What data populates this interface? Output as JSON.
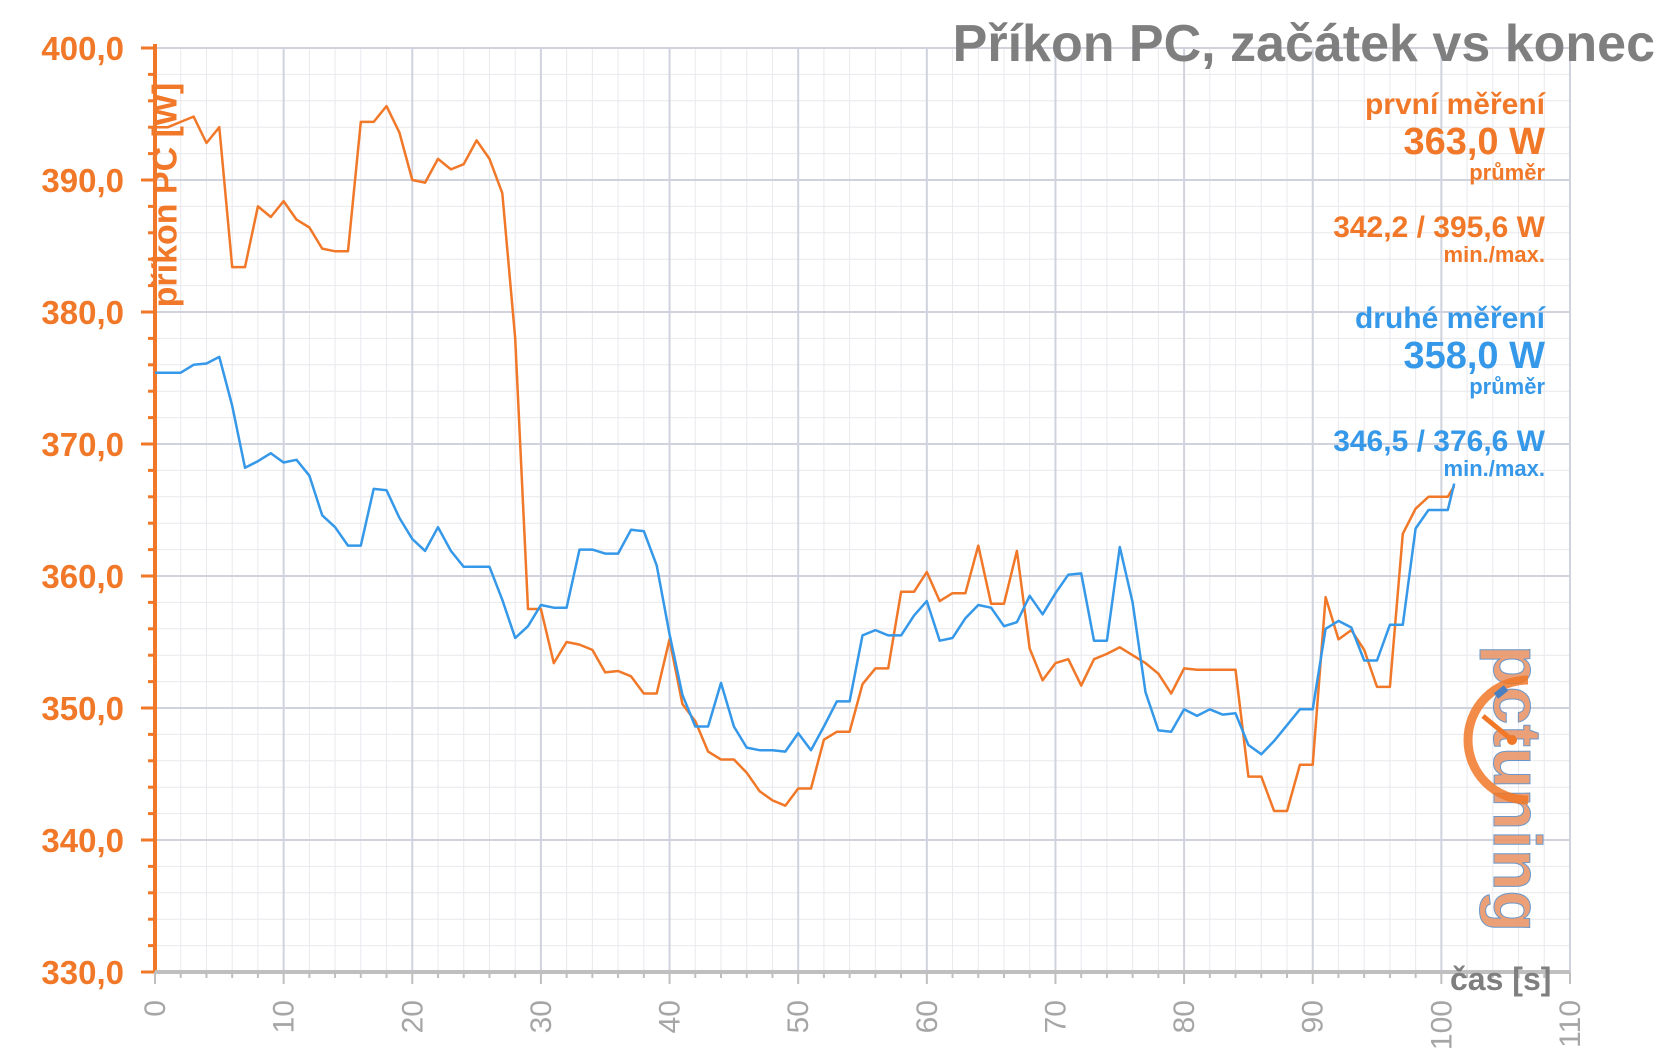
{
  "chart_data": {
    "type": "line",
    "title": "Příkon PC, začátek vs konec",
    "ylabel": "příkon PC [W]",
    "xlabel": "čas [s]",
    "xlim": [
      0,
      110
    ],
    "ylim": [
      330,
      400
    ],
    "x_ticks": [
      "0",
      "10",
      "20",
      "30",
      "40",
      "50",
      "60",
      "70",
      "80",
      "90",
      "100",
      "110"
    ],
    "y_ticks": [
      "330,0",
      "340,0",
      "350,0",
      "360,0",
      "370,0",
      "380,0",
      "390,0",
      "400,0"
    ],
    "grid": true,
    "series": [
      {
        "name": "první měření",
        "color": "#f07828",
        "average": "363,0 W",
        "average_label": "průměr",
        "minmax": "342,2 / 395,6 W",
        "minmax_label": "min./max.",
        "values": [
          394.0,
          394.0,
          394.4,
          394.8,
          392.8,
          394.0,
          383.4,
          383.4,
          388.0,
          387.2,
          388.4,
          387.0,
          386.4,
          384.8,
          384.6,
          384.6,
          394.4,
          394.4,
          395.6,
          393.6,
          390.0,
          389.8,
          391.6,
          390.8,
          391.2,
          393.0,
          391.6,
          389.0,
          378.0,
          357.5,
          357.5,
          353.4,
          355.0,
          354.8,
          354.4,
          352.7,
          352.8,
          352.4,
          351.1,
          351.1,
          355.2,
          350.3,
          349.0,
          346.7,
          346.1,
          346.1,
          345.1,
          343.7,
          343.0,
          342.6,
          343.9,
          343.9,
          347.6,
          348.2,
          348.2,
          351.8,
          353.0,
          353.0,
          358.8,
          358.8,
          360.3,
          358.1,
          358.7,
          358.7,
          362.3,
          357.9,
          357.9,
          361.9,
          354.5,
          352.1,
          353.4,
          353.7,
          351.7,
          353.7,
          354.1,
          354.6,
          354.0,
          353.4,
          352.6,
          351.1,
          353.0,
          352.9,
          352.9,
          352.9,
          352.9,
          344.8,
          344.8,
          342.2,
          342.2,
          345.7,
          345.7,
          358.4,
          355.2,
          355.9,
          354.4,
          351.6,
          351.6,
          363.2,
          365.1,
          366.0,
          366.0,
          366.0,
          366.8
        ],
        "x": [
          0,
          1,
          2,
          3,
          4,
          5,
          6,
          7,
          8,
          9,
          10,
          11,
          12,
          13,
          14,
          15,
          16,
          17,
          18,
          19,
          20,
          21,
          22,
          23,
          24,
          25,
          26,
          27,
          28,
          29,
          30,
          31,
          32,
          33,
          34,
          35,
          36,
          37,
          38,
          39,
          40,
          41,
          42,
          43,
          44,
          45,
          46,
          47,
          48,
          49,
          50,
          51,
          52,
          53,
          54,
          55,
          56,
          57,
          58,
          59,
          60,
          61,
          62,
          63,
          64,
          65,
          66,
          67,
          68,
          69,
          70,
          71,
          72,
          73,
          74,
          75,
          76,
          77,
          78,
          79,
          80,
          81,
          82,
          83,
          84,
          85,
          86,
          87,
          88,
          89,
          90,
          91,
          92,
          93,
          94,
          95,
          96,
          97,
          98,
          99,
          100,
          100.5,
          101
        ]
      },
      {
        "name": "druhé měření",
        "color": "#3598e8",
        "average": "358,0 W",
        "average_label": "průměr",
        "minmax": "346,5 / 376,6 W",
        "minmax_label": "min./max.",
        "values": [
          375.4,
          375.4,
          375.4,
          376.0,
          376.1,
          376.6,
          372.9,
          368.2,
          368.7,
          369.3,
          368.6,
          368.8,
          367.6,
          364.6,
          363.7,
          362.3,
          362.3,
          366.6,
          366.5,
          364.4,
          362.8,
          361.9,
          363.7,
          361.9,
          360.7,
          360.7,
          360.7,
          358.2,
          355.3,
          356.2,
          357.8,
          357.6,
          357.6,
          362.0,
          362.0,
          361.7,
          361.7,
          363.5,
          363.4,
          360.8,
          355.6,
          351.0,
          348.6,
          348.6,
          351.9,
          348.6,
          347.0,
          346.8,
          346.8,
          346.7,
          348.1,
          346.8,
          348.6,
          350.5,
          350.5,
          355.5,
          355.9,
          355.5,
          355.5,
          357.0,
          358.1,
          355.1,
          355.3,
          356.8,
          357.8,
          357.6,
          356.2,
          356.5,
          358.5,
          357.1,
          358.7,
          360.1,
          360.2,
          355.1,
          355.1,
          362.2,
          358.0,
          351.2,
          348.3,
          348.2,
          349.9,
          349.4,
          349.9,
          349.5,
          349.6,
          347.2,
          346.5,
          347.5,
          348.7,
          349.9,
          349.9,
          356.0,
          356.6,
          356.1,
          353.6,
          353.6,
          356.3,
          356.3,
          363.6,
          365.0,
          365.0,
          365.0,
          367.0
        ],
        "x": [
          0,
          1,
          2,
          3,
          4,
          5,
          6,
          7,
          8,
          9,
          10,
          11,
          12,
          13,
          14,
          15,
          16,
          17,
          18,
          19,
          20,
          21,
          22,
          23,
          24,
          25,
          26,
          27,
          28,
          29,
          30,
          31,
          32,
          33,
          34,
          35,
          36,
          37,
          38,
          39,
          40,
          41,
          42,
          43,
          44,
          45,
          46,
          47,
          48,
          49,
          50,
          51,
          52,
          53,
          54,
          55,
          56,
          57,
          58,
          59,
          60,
          61,
          62,
          63,
          64,
          65,
          66,
          67,
          68,
          69,
          70,
          71,
          72,
          73,
          74,
          75,
          76,
          77,
          78,
          79,
          80,
          81,
          82,
          83,
          84,
          85,
          86,
          87,
          88,
          89,
          90,
          91,
          92,
          93,
          94,
          95,
          96,
          97,
          98,
          99,
          100,
          100.5,
          101
        ]
      }
    ]
  },
  "logo": {
    "text": "pctuning"
  }
}
